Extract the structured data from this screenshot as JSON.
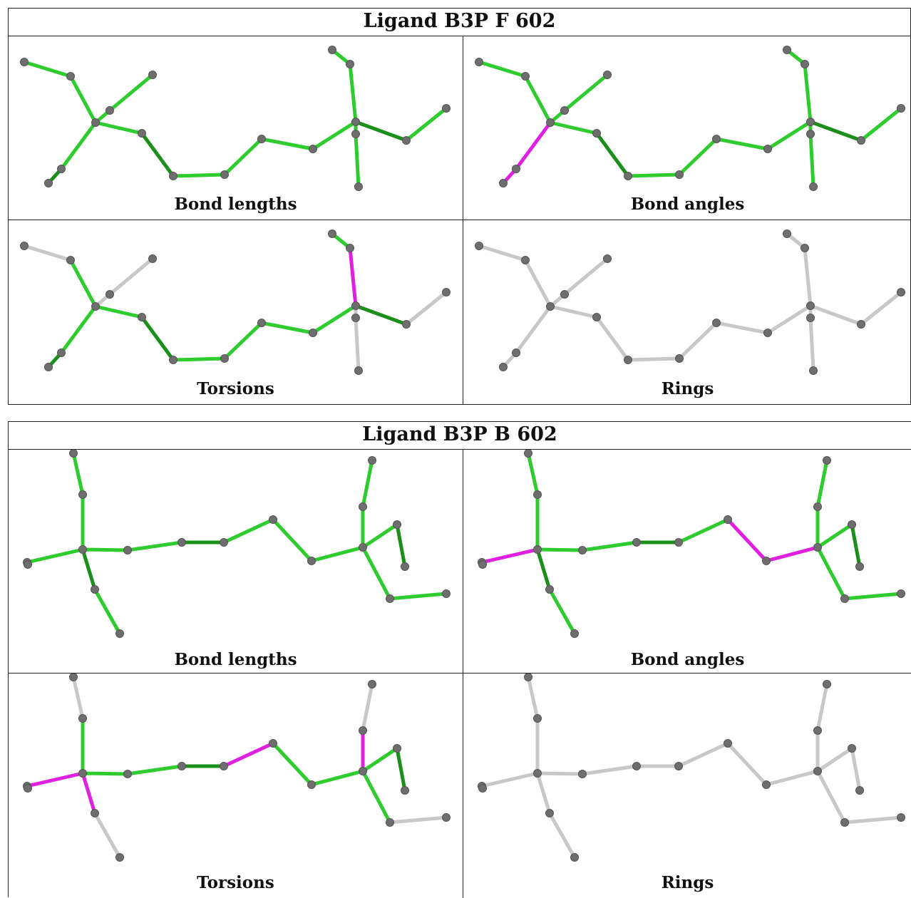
{
  "ligands": [
    {
      "title": "Ligand B3P F 602",
      "panels": [
        {
          "caption": "Bond lengths"
        },
        {
          "caption": "Bond angles"
        },
        {
          "caption": "Torsions"
        },
        {
          "caption": "Rings"
        }
      ]
    },
    {
      "title": "Ligand B3P B 602",
      "panels": [
        {
          "caption": "Bond lengths"
        },
        {
          "caption": "Bond angles"
        },
        {
          "caption": "Torsions"
        },
        {
          "caption": "Rings"
        }
      ]
    }
  ],
  "colors": {
    "ok": "#2ecc2e",
    "ok_dark": "#1a8f1a",
    "outlier": "#e020e0",
    "none": "#c8c8c8",
    "atom": "#6e6e6e"
  }
}
